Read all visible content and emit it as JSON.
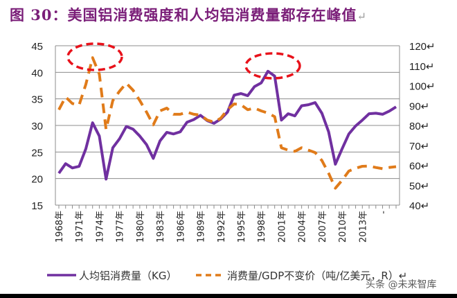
{
  "title": "图 30：美国铝消费强度和人均铝消费量都存在峰值",
  "title_return_mark": "↵",
  "watermark": "头条 @未来智库",
  "chart_data": {
    "type": "line",
    "title": "图 30：美国铝消费强度和人均铝消费量都存在峰值",
    "x": [
      1968,
      1969,
      1970,
      1971,
      1972,
      1973,
      1974,
      1975,
      1976,
      1977,
      1978,
      1979,
      1980,
      1981,
      1982,
      1983,
      1984,
      1985,
      1986,
      1987,
      1988,
      1989,
      1990,
      1991,
      1992,
      1993,
      1994,
      1995,
      1996,
      1997,
      1998,
      1999,
      2000,
      2001,
      2002,
      2003,
      2004,
      2005,
      2006,
      2007,
      2008,
      2009,
      2010,
      2011,
      2012,
      2013,
      2014,
      2015,
      2016,
      2017,
      2018
    ],
    "x_tick_labels": [
      "1968年",
      "1971年",
      "1974年",
      "1977年",
      "1980年",
      "1983年",
      "1986年",
      "1989年",
      "1992年",
      "1995年",
      "1998年",
      "2001年",
      "2004年",
      "2007年",
      "2010年",
      "2013年",
      "-"
    ],
    "series": [
      {
        "name": "人均铝消费量（KG）",
        "axis": "left",
        "style": "solid",
        "color": "#7030a0",
        "values": [
          21.0,
          22.8,
          22.0,
          22.3,
          25.6,
          30.5,
          28.0,
          19.9,
          25.8,
          27.5,
          29.8,
          29.3,
          28.0,
          26.4,
          23.8,
          27.1,
          28.7,
          28.4,
          28.8,
          30.6,
          31.1,
          31.9,
          30.9,
          30.4,
          31.2,
          32.5,
          35.7,
          36.0,
          35.6,
          37.3,
          38.0,
          40.2,
          39.3,
          31.0,
          32.2,
          31.8,
          33.7,
          33.9,
          34.3,
          32.3,
          28.8,
          22.7,
          25.6,
          28.4,
          29.9,
          31.0,
          32.2,
          32.3,
          32.1,
          32.7,
          33.5
        ]
      },
      {
        "name": "消费量/GDP不变价（吨/亿美元，R）",
        "axis": "right",
        "style": "dashed",
        "color": "#e07b1a",
        "values": [
          87.9,
          94.3,
          91.0,
          90.2,
          100.6,
          114.0,
          105.8,
          78.0,
          92.5,
          97.2,
          101.2,
          97.7,
          92.5,
          86.7,
          80.3,
          87.3,
          88.7,
          85.6,
          85.6,
          86.7,
          85.6,
          85.2,
          82.7,
          81.7,
          83.6,
          87.9,
          90.8,
          90.4,
          87.9,
          88.7,
          87.3,
          86.2,
          84.4,
          68.8,
          67.6,
          67.0,
          68.8,
          67.6,
          66.4,
          62.4,
          56.0,
          48.5,
          52.5,
          57.1,
          58.5,
          59.5,
          59.6,
          58.9,
          58.3,
          58.9,
          59.3
        ]
      }
    ],
    "y_left": {
      "range": [
        15,
        45
      ],
      "ticks": [
        "15",
        "20",
        "25",
        "30",
        "35",
        "40",
        "45"
      ]
    },
    "y_right": {
      "range": [
        40,
        120
      ],
      "ticks": [
        "40↵",
        "50↵",
        "60↵",
        "70↵",
        "80↵",
        "90↵",
        "100↵",
        "110↵",
        "120↵"
      ]
    },
    "grid": "horizontal",
    "legend": {
      "placement": "bottom",
      "entries": [
        "人均铝消费量（KG）",
        "消费量/GDP不变价（吨/亿美元，R）↵"
      ]
    },
    "annotations": [
      {
        "type": "red-dashed-ellipse",
        "around": 1973
      },
      {
        "type": "red-dashed-ellipse",
        "around": 1999
      }
    ]
  }
}
